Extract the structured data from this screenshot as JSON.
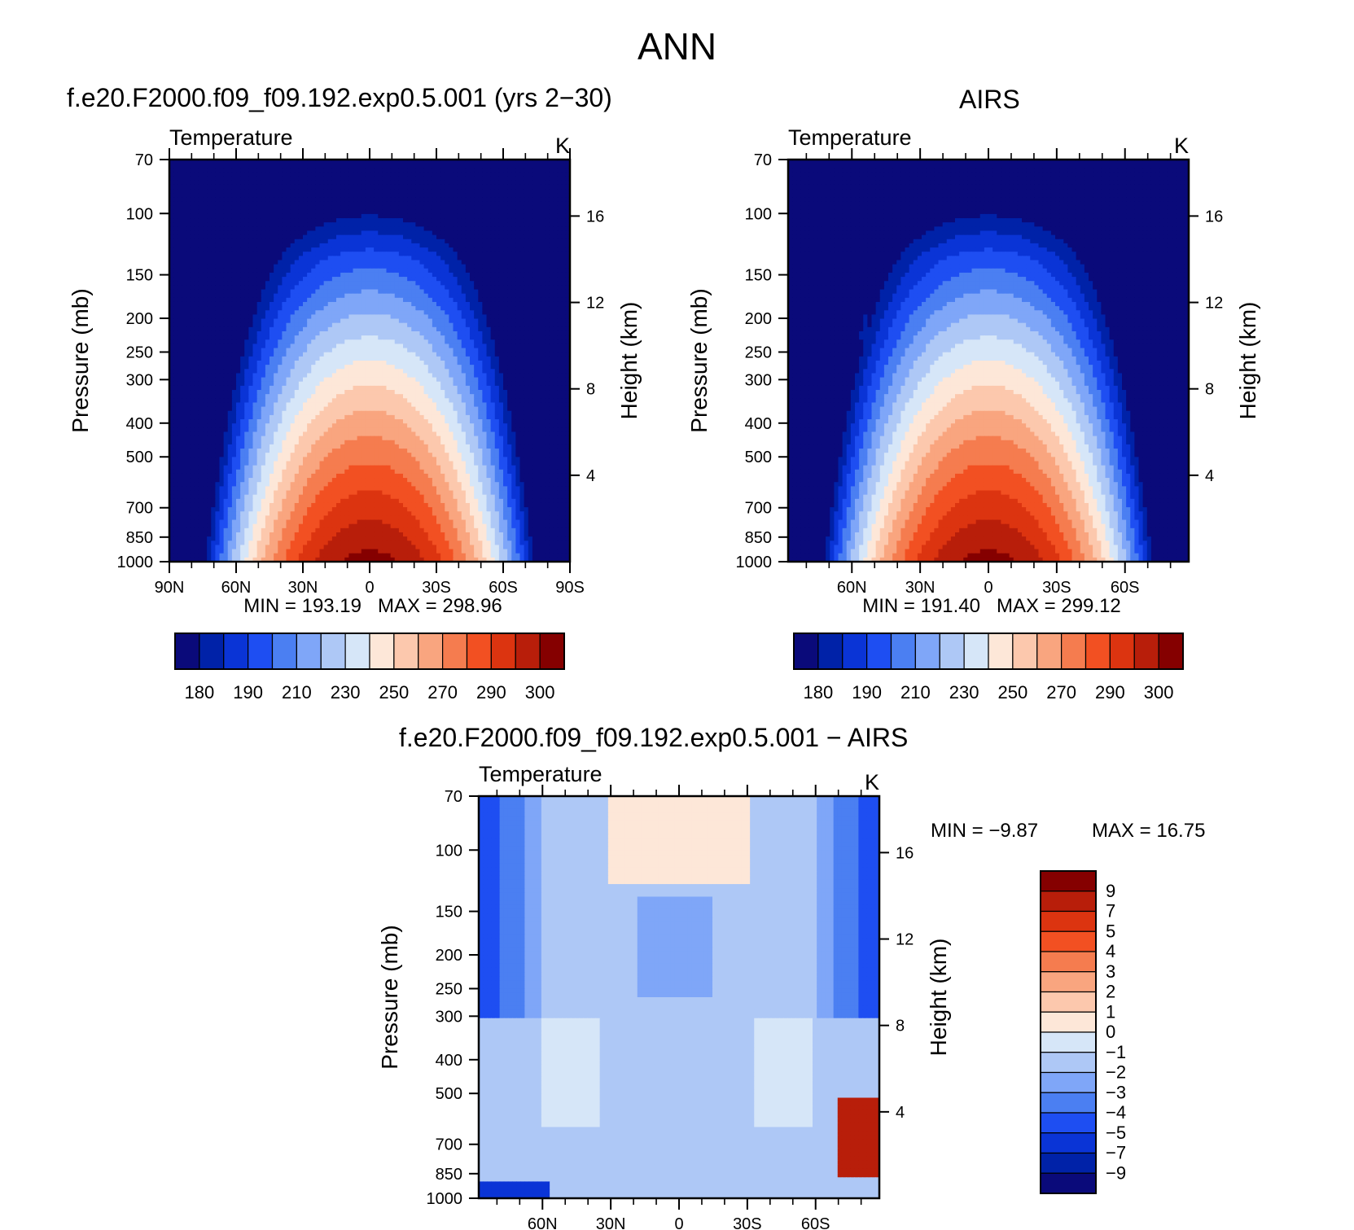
{
  "figure": {
    "title": "ANN"
  },
  "palettes": {
    "temperature": [
      "#0a0a7a",
      "#0022a8",
      "#0a34d6",
      "#1e4ef2",
      "#4b7ff2",
      "#7fa6f8",
      "#aec8f6",
      "#d6e6f8",
      "#fde7d8",
      "#fcc8ad",
      "#f9a57f",
      "#f57c4f",
      "#f25022",
      "#dc3410",
      "#b81e0a",
      "#850000"
    ],
    "difference": [
      "#0a0a7a",
      "#0022a8",
      "#0a34d6",
      "#1e4ef2",
      "#4b7ff2",
      "#7fa6f8",
      "#aec8f6",
      "#d6e6f8",
      "#fde7d8",
      "#fcc8ad",
      "#f9a57f",
      "#f57c4f",
      "#f25022",
      "#dc3410",
      "#b81e0a",
      "#850000"
    ]
  },
  "chart_data": [
    {
      "type": "heatmap",
      "title": "f.e20.F2000.f09_f09.192.exp0.5.001 (yrs 2−30)",
      "variable": "Temperature",
      "units": "K",
      "xlabel": "",
      "ylabel": "Pressure (mb)",
      "ylabel_right": "Height (km)",
      "x_ticks": [
        "90N",
        "60N",
        "30N",
        "0",
        "30S",
        "60S",
        "90S"
      ],
      "y_ticks": [
        "70",
        "100",
        "150",
        "200",
        "250",
        "300",
        "400",
        "500",
        "700",
        "850",
        "1000"
      ],
      "y_right_ticks": [
        "16",
        "12",
        "8",
        "4"
      ],
      "ylim": [
        1000,
        70
      ],
      "y_log": true,
      "min_label": "MIN = 193.19",
      "max_label": "MAX = 298.96",
      "min": 193.19,
      "max": 298.96,
      "colorbar_labels": [
        "180",
        "190",
        "210",
        "230",
        "250",
        "270",
        "290",
        "300"
      ],
      "colorbar_orientation": "horizontal"
    },
    {
      "type": "heatmap",
      "title": "AIRS",
      "variable": "Temperature",
      "units": "K",
      "xlabel": "",
      "ylabel": "Pressure (mb)",
      "ylabel_right": "Height (km)",
      "x_ticks": [
        "60N",
        "30N",
        "0",
        "30S",
        "60S"
      ],
      "y_ticks": [
        "70",
        "100",
        "150",
        "200",
        "250",
        "300",
        "400",
        "500",
        "700",
        "850",
        "1000"
      ],
      "y_right_ticks": [
        "16",
        "12",
        "8",
        "4"
      ],
      "ylim": [
        1000,
        70
      ],
      "y_log": true,
      "min_label": "MIN = 191.40",
      "max_label": "MAX = 299.12",
      "min": 191.4,
      "max": 299.12,
      "colorbar_labels": [
        "180",
        "190",
        "210",
        "230",
        "250",
        "270",
        "290",
        "300"
      ],
      "colorbar_orientation": "horizontal"
    },
    {
      "type": "heatmap",
      "title": "f.e20.F2000.f09_f09.192.exp0.5.001 − AIRS",
      "variable": "Temperature",
      "units": "K",
      "xlabel": "",
      "ylabel": "Pressure (mb)",
      "ylabel_right": "Height (km)",
      "x_ticks": [
        "60N",
        "30N",
        "0",
        "30S",
        "60S"
      ],
      "y_ticks": [
        "70",
        "100",
        "150",
        "200",
        "250",
        "300",
        "400",
        "500",
        "700",
        "850",
        "1000"
      ],
      "y_right_ticks": [
        "16",
        "12",
        "8",
        "4"
      ],
      "ylim": [
        1000,
        70
      ],
      "y_log": true,
      "min_label": "MIN =   −9.87",
      "max_label": "MAX =   16.75",
      "min": -9.87,
      "max": 16.75,
      "colorbar_labels": [
        "9",
        "7",
        "5",
        "4",
        "3",
        "2",
        "1",
        "0",
        "−1",
        "−2",
        "−3",
        "−4",
        "−5",
        "−7",
        "−9"
      ],
      "colorbar_orientation": "vertical"
    }
  ]
}
